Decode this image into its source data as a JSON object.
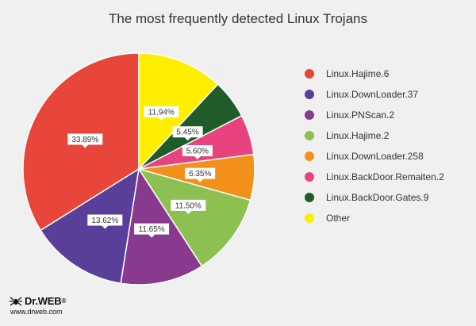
{
  "chart_data": {
    "type": "pie",
    "title": "The most frequently detected Linux Trojans",
    "slices": [
      {
        "name": "Linux.Hajime.6",
        "value": 33.89,
        "label": "33.89%",
        "color": "#e8463a"
      },
      {
        "name": "Linux.DownLoader.37",
        "value": 13.62,
        "label": "13.62%",
        "color": "#5a3f9a"
      },
      {
        "name": "Linux.PNScan.2",
        "value": 11.65,
        "label": "11.65%",
        "color": "#873a8e"
      },
      {
        "name": "Linux.Hajime.2",
        "value": 11.5,
        "label": "11.50%",
        "color": "#8cc152"
      },
      {
        "name": "Linux.DownLoader.258",
        "value": 6.35,
        "label": "6.35%",
        "color": "#f39019"
      },
      {
        "name": "Linux.BackDoor.Remaiten.2",
        "value": 5.6,
        "label": "5.60%",
        "color": "#e8427f"
      },
      {
        "name": "Linux.BackDoor.Gates.9",
        "value": 5.45,
        "label": "5.45%",
        "color": "#1f5c29"
      },
      {
        "name": "Other",
        "value": 11.94,
        "label": "11.94%",
        "color": "#ffee00"
      }
    ],
    "legend_position": "right",
    "start": "top",
    "direction": "counterclockwise"
  },
  "logo": {
    "name": "Dr.WEB",
    "reg": "®",
    "url": "www.drweb.com"
  }
}
